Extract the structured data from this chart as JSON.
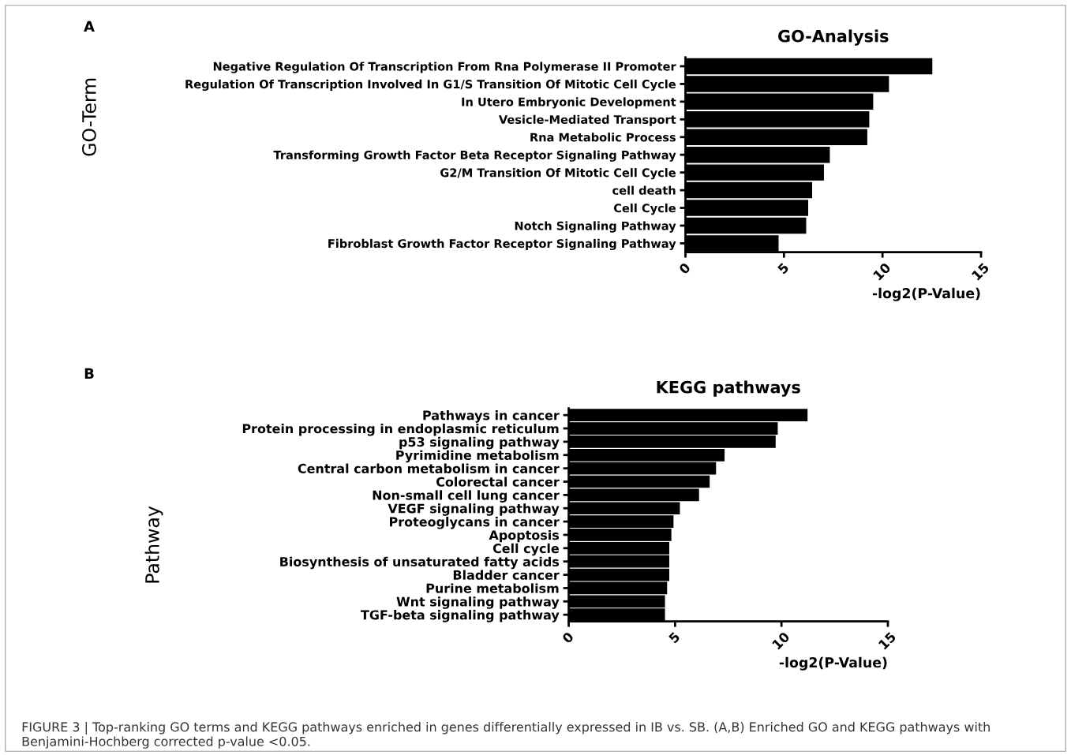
{
  "chart_data": [
    {
      "type": "bar",
      "orientation": "horizontal",
      "title": "GO-Analysis",
      "xlabel": "-log2(P-Value)",
      "ylabel": "GO-Term",
      "categories": [
        "Negative Regulation Of Transcription From Rna Polymerase II Promoter",
        "Regulation Of Transcription Involved In G1/S Transition Of Mitotic Cell Cycle",
        "In Utero Embryonic Development",
        "Vesicle-Mediated Transport",
        "Rna Metabolic Process",
        "Transforming Growth Factor Beta Receptor Signaling Pathway",
        "G2/M Transition Of Mitotic Cell Cycle",
        "cell death",
        "Cell Cycle",
        "Notch Signaling Pathway",
        "Fibroblast Growth Factor Receptor Signaling Pathway"
      ],
      "values": [
        12.5,
        10.3,
        9.5,
        9.3,
        9.2,
        7.3,
        7.0,
        6.4,
        6.2,
        6.1,
        4.7
      ],
      "color": "#000000",
      "xlim": [
        0,
        15
      ],
      "xticks": [
        0,
        5,
        10,
        15
      ],
      "grid": false,
      "annotations": [
        "A"
      ]
    },
    {
      "type": "bar",
      "orientation": "horizontal",
      "title": "KEGG pathways",
      "xlabel": "-log2(P-Value)",
      "ylabel": "Pathway",
      "categories": [
        "Pathways in cancer",
        "Protein processing in endoplasmic reticulum",
        "p53 signaling pathway",
        "Pyrimidine metabolism",
        "Central carbon metabolism in cancer",
        "Colorectal cancer",
        "Non-small cell lung cancer",
        "VEGF signaling pathway",
        "Proteoglycans in cancer",
        "Apoptosis",
        "Cell cycle",
        "Biosynthesis of unsaturated fatty acids",
        "Bladder cancer",
        "Purine metabolism",
        "Wnt signaling pathway",
        "TGF-beta signaling pathway"
      ],
      "values": [
        11.2,
        9.8,
        9.7,
        7.3,
        6.9,
        6.6,
        6.1,
        5.2,
        4.9,
        4.8,
        4.7,
        4.7,
        4.7,
        4.6,
        4.5,
        4.5
      ],
      "color": "#000000",
      "xlim": [
        0,
        15
      ],
      "xticks": [
        0,
        5,
        10,
        15
      ],
      "grid": false,
      "annotations": [
        "B",
        "FIGURE 3 | Top-ranking GO terms and KEGG pathways enriched in genes differentially expressed in IB vs. SB. (A,B) Enriched GO and KEGG pathways with Benjamini-Hochberg corrected p-value <0.05."
      ]
    }
  ]
}
